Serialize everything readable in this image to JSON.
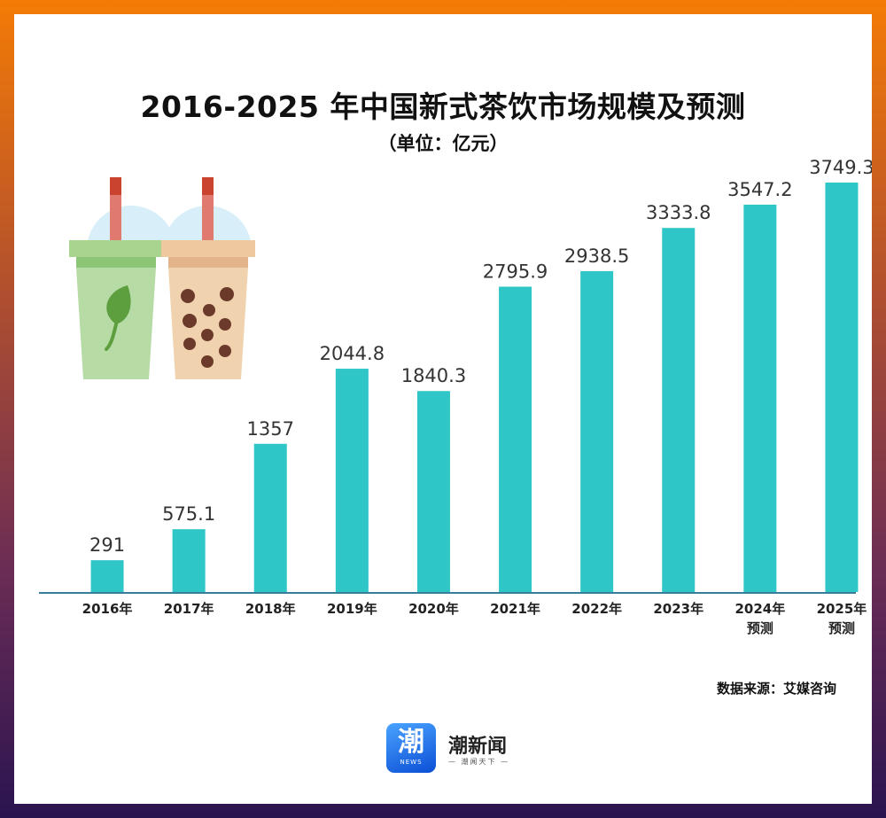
{
  "header": {
    "title": "2016-2025 年中国新式茶饮市场规模及预测",
    "subtitle": "（单位：亿元）"
  },
  "source": "数据来源：艾媒咨询",
  "logo": {
    "glyph": "潮",
    "badge_text": "NEWS",
    "name": "潮新闻",
    "slogan": "— 潮闻天下 —"
  },
  "colors": {
    "bar": "#2fc6c8",
    "axis": "#3a7d9a",
    "text": "#333333"
  },
  "chart_data": {
    "type": "bar",
    "title": "2016-2025 年中国新式茶饮市场规模及预测",
    "ylabel": "（单位：亿元）",
    "ylim": [
      0,
      4000
    ],
    "grid": false,
    "categories": [
      "2016年",
      "2017年",
      "2018年",
      "2019年",
      "2020年",
      "2021年",
      "2022年",
      "2023年",
      "2024年",
      "2025年"
    ],
    "category_notes": [
      "",
      "",
      "",
      "",
      "",
      "",
      "",
      "",
      "预测",
      "预测"
    ],
    "values": [
      291,
      575.1,
      1357,
      2044.8,
      1840.3,
      2795.9,
      2938.5,
      3333.8,
      3547.2,
      3749.3
    ],
    "value_labels": [
      "291",
      "575.1",
      "1357",
      "2044.8",
      "1840.3",
      "2795.9",
      "2938.5",
      "3333.8",
      "3547.2",
      "3749.3"
    ]
  }
}
